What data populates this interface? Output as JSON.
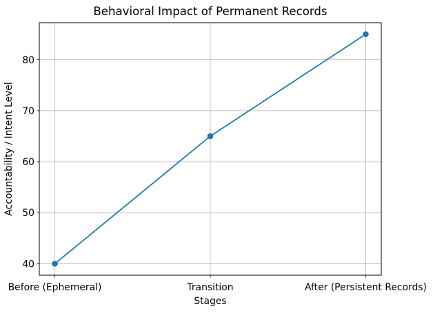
{
  "chart_data": {
    "type": "line",
    "title": "Behavioral Impact of Permanent Records",
    "xlabel": "Stages",
    "ylabel": "Accountability / Intent Level",
    "categories": [
      "Before (Ephemeral)",
      "Transition",
      "After (Persistent Records)"
    ],
    "series": [
      {
        "name": "Accountability / Intent Level",
        "values": [
          40,
          65,
          85
        ]
      }
    ],
    "yticks": [
      40,
      50,
      60,
      70,
      80
    ],
    "ylim": [
      37.75,
      87.25
    ],
    "grid": true,
    "legend": "none",
    "marker": "o",
    "colors": {
      "line": "#1f77b4",
      "marker": "#1f77b4",
      "grid": "#b0b0b0",
      "axes": "#000000",
      "text": "#000000",
      "background": "#ffffff"
    }
  }
}
